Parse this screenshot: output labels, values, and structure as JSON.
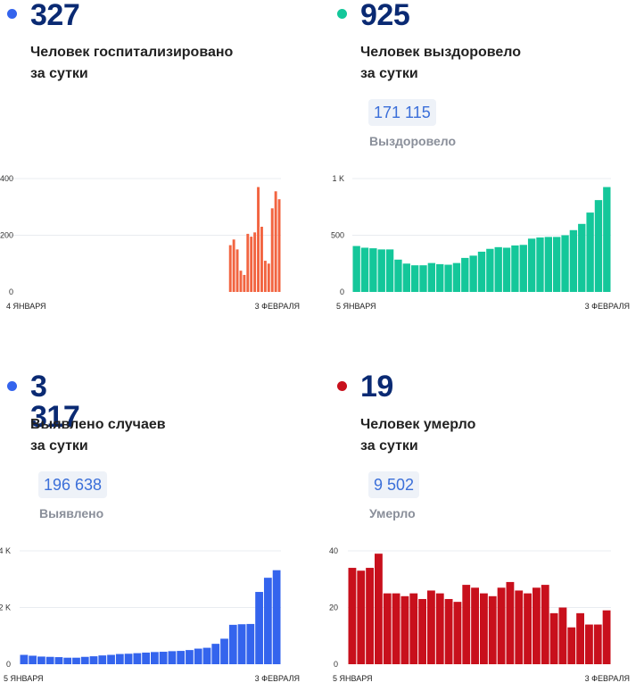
{
  "colors": {
    "hosp": "#f26440",
    "recovered": "#14c79a",
    "cases": "#3464ed",
    "deaths": "#c8101c",
    "title": "#0a2a73"
  },
  "panels": [
    {
      "key": "hosp",
      "number": "327",
      "desc_line1": "Человек госпитализировано",
      "desc_line2": "за сутки",
      "total_value": "",
      "total_label": ""
    },
    {
      "key": "recovered",
      "number": "925",
      "desc_line1": "Человек выздоровело",
      "desc_line2": "за сутки",
      "total_value": "171 115",
      "total_label": "Выздоровело"
    },
    {
      "key": "cases",
      "number": "3 317",
      "desc_line1": "Выявлено случаев",
      "desc_line2": "за сутки",
      "total_value": "196 638",
      "total_label": "Выявлено"
    },
    {
      "key": "deaths",
      "number": "19",
      "desc_line1": "Человек умерло",
      "desc_line2": "за сутки",
      "total_value": "9 502",
      "total_label": "Умерло"
    }
  ],
  "chart_data": [
    {
      "type": "bar",
      "series_key": "hosp",
      "x_start_label": "4 ЯНВАРЯ",
      "x_end_label": "3 ФЕВРАЛЯ",
      "ylim": [
        0,
        400
      ],
      "yticks": [
        0,
        200,
        400
      ],
      "ytick_labels": [
        "0",
        "200",
        "400"
      ],
      "values": [
        null,
        null,
        null,
        null,
        null,
        null,
        null,
        null,
        null,
        null,
        null,
        null,
        null,
        null,
        null,
        null,
        null,
        null,
        null,
        null,
        null,
        165,
        185,
        150,
        75,
        60,
        205,
        195,
        210,
        370,
        230,
        110,
        100,
        295,
        355,
        327
      ]
    },
    {
      "type": "bar",
      "series_key": "recovered",
      "x_start_label": "5 ЯНВАРЯ",
      "x_end_label": "3 ФЕВРАЛЯ",
      "ylim": [
        0,
        1000
      ],
      "yticks": [
        0,
        500,
        1000
      ],
      "ytick_labels": [
        "0",
        "500",
        "1 K"
      ],
      "values": [
        405,
        390,
        385,
        375,
        375,
        285,
        250,
        235,
        235,
        255,
        245,
        240,
        255,
        300,
        320,
        355,
        380,
        395,
        390,
        410,
        415,
        470,
        480,
        485,
        485,
        500,
        545,
        600,
        700,
        810,
        925
      ]
    },
    {
      "type": "bar",
      "series_key": "cases",
      "x_start_label": "5 ЯНВАРЯ",
      "x_end_label": "3 ФЕВРАЛЯ",
      "ylim": [
        0,
        4000
      ],
      "yticks": [
        0,
        2000,
        4000
      ],
      "ytick_labels": [
        "0",
        "2 K",
        "4 K"
      ],
      "values": [
        330,
        300,
        270,
        260,
        250,
        230,
        230,
        260,
        280,
        310,
        330,
        360,
        370,
        390,
        410,
        430,
        440,
        460,
        470,
        500,
        550,
        580,
        720,
        900,
        1390,
        1410,
        1420,
        2550,
        3050,
        3317
      ]
    },
    {
      "type": "bar",
      "series_key": "deaths",
      "x_start_label": "5 ЯНВАРЯ",
      "x_end_label": "3 ФЕВРАЛЯ",
      "ylim": [
        0,
        40
      ],
      "yticks": [
        0,
        20,
        40
      ],
      "ytick_labels": [
        "0",
        "20",
        "40"
      ],
      "values": [
        34,
        33,
        34,
        39,
        25,
        25,
        24,
        25,
        23,
        26,
        25,
        23,
        22,
        28,
        27,
        25,
        24,
        27,
        29,
        26,
        25,
        27,
        28,
        18,
        20,
        13,
        18,
        14,
        14,
        19
      ]
    }
  ]
}
